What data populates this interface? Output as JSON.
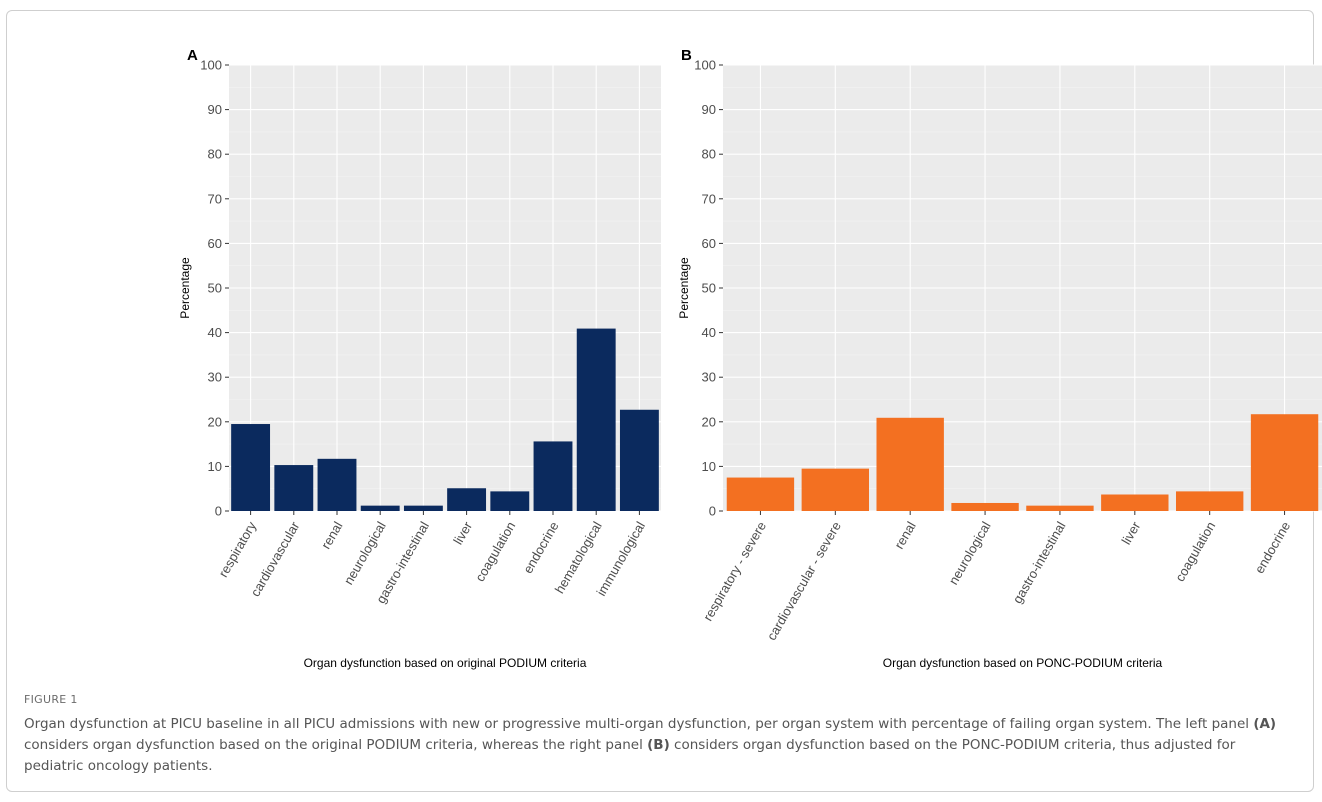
{
  "figure": {
    "label": "FIGURE 1",
    "caption_parts": [
      "Organ dysfunction at PICU baseline in all PICU admissions with new or progressive multi-organ dysfunction, per organ system with percentage of failing organ system. The left panel ",
      "(A)",
      " considers organ dysfunction based on the original PODIUM criteria, whereas the right panel ",
      "(B)",
      " considers organ dysfunction based on the PONC-PODIUM criteria, thus adjusted for pediatric oncology patients."
    ]
  },
  "chart_data": [
    {
      "type": "bar",
      "panel_label": "A",
      "categories": [
        "respiratory",
        "cardiovascular",
        "renal",
        "neurological",
        "gastro-intestinal",
        "liver",
        "coagulation",
        "endocrine",
        "hematological",
        "immunological"
      ],
      "values": [
        19.5,
        10.3,
        11.7,
        1.2,
        1.2,
        5.1,
        4.4,
        15.6,
        40.9,
        22.7
      ],
      "xlabel": "Organ dysfunction based on original PODIUM criteria",
      "ylabel": "Percentage",
      "ylim": [
        0,
        100
      ],
      "yticks": [
        0,
        10,
        20,
        30,
        40,
        50,
        60,
        70,
        80,
        90,
        100
      ],
      "grid": true,
      "bar_color": "#0b2a5e",
      "panel_background": "#ebebeb"
    },
    {
      "type": "bar",
      "panel_label": "B",
      "categories": [
        "respiratory - severe",
        "cardiovascular - severe",
        "renal",
        "neurological",
        "gastro-intestinal",
        "liver",
        "coagulation",
        "endocrine"
      ],
      "values": [
        7.5,
        9.5,
        20.9,
        1.8,
        1.2,
        3.7,
        4.4,
        21.7
      ],
      "xlabel": "Organ dysfunction based on PONC-PODIUM criteria",
      "ylabel": "Percentage",
      "ylim": [
        0,
        100
      ],
      "yticks": [
        0,
        10,
        20,
        30,
        40,
        50,
        60,
        70,
        80,
        90,
        100
      ],
      "grid": true,
      "bar_color": "#f37021",
      "panel_background": "#ebebeb"
    }
  ]
}
